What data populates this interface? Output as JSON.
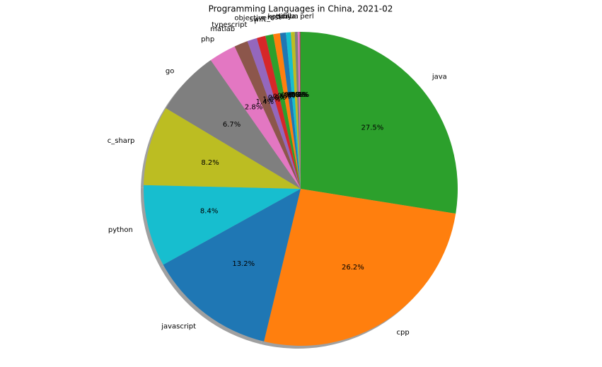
{
  "chart_data": {
    "type": "pie",
    "title": "Programming Languages in China, 2021-02",
    "start_angle": 90,
    "direction": "clockwise",
    "shadow": true,
    "categories": [
      "java",
      "cpp",
      "javascript",
      "python",
      "c_sharp",
      "go",
      "php",
      "matlab",
      "typescript",
      "r",
      "swift",
      "objective_c",
      "rust",
      "kotlin",
      "ruby",
      "scala",
      "lua",
      "perl"
    ],
    "values": [
      27.5,
      26.2,
      13.2,
      8.4,
      8.2,
      6.7,
      2.8,
      1.4,
      1.0,
      0.9,
      0.8,
      0.7,
      0.6,
      0.5,
      0.4,
      0.3,
      0.2,
      0.1
    ],
    "value_labels": [
      "27.5%",
      "26.2%",
      "13.2%",
      "8.4%",
      "8.2%",
      "6.7%",
      "2.8%",
      "1.4%",
      "1.0%",
      "0.9%",
      "0.8%",
      "0.7%",
      "0.6%",
      "0.5%",
      "0.4%",
      "0.3%",
      "0.2%",
      "0.1%"
    ],
    "colors": [
      "#2ca02c",
      "#ff7f0e",
      "#1f77b4",
      "#17becf",
      "#bcbd22",
      "#7f7f7f",
      "#e377c2",
      "#8c564b",
      "#9467bd",
      "#d62728",
      "#2ca02c",
      "#ff7f0e",
      "#1f77b4",
      "#17becf",
      "#bcbd22",
      "#7f7f7f",
      "#e377c2",
      "#8c564b"
    ]
  }
}
